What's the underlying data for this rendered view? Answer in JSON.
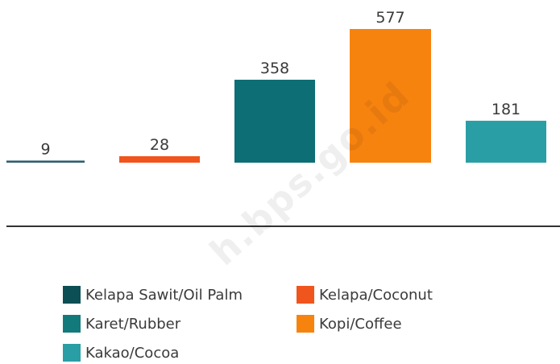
{
  "chart_data": {
    "type": "bar",
    "title": "",
    "xlabel": "",
    "ylabel": "",
    "ylim": [
      0,
      577
    ],
    "grid": false,
    "legend_position": "bottom",
    "bars": [
      {
        "value": 9,
        "label": "9",
        "color": "#2f5f6e"
      },
      {
        "value": 28,
        "label": "28",
        "color": "#f0551e"
      },
      {
        "value": 358,
        "label": "358",
        "color": "#0d6e75"
      },
      {
        "value": 577,
        "label": "577",
        "color": "#f7830f"
      },
      {
        "value": 181,
        "label": "181",
        "color": "#2a9ea5"
      }
    ],
    "legend": [
      {
        "label": "Kelapa Sawit/Oil Palm",
        "color": "#0c4f55"
      },
      {
        "label": "Kelapa/Coconut",
        "color": "#f0551e"
      },
      {
        "label": "Karet/Rubber",
        "color": "#137a7c"
      },
      {
        "label": "Kopi/Coffee",
        "color": "#f7830f"
      },
      {
        "label": "Kakao/Cocoa",
        "color": "#2a9ea5"
      }
    ]
  },
  "watermark": "h.bps.go.id"
}
